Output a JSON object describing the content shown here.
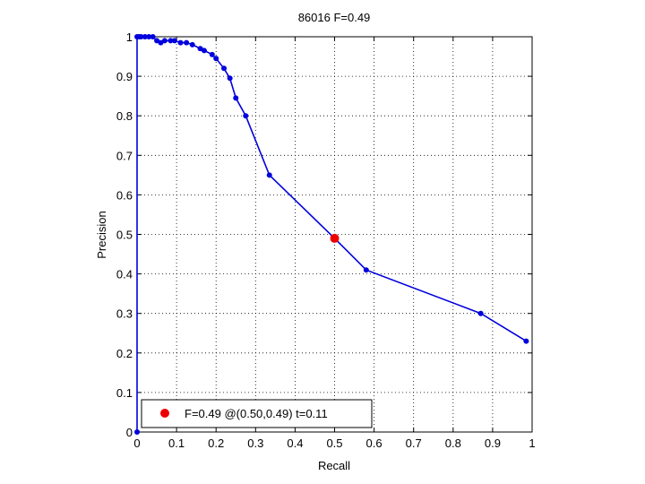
{
  "chart_data": {
    "type": "line",
    "title": "86016 F=0.49",
    "xlabel": "Recall",
    "ylabel": "Precision",
    "xlim": [
      0,
      1
    ],
    "ylim": [
      0,
      1
    ],
    "xticks": [
      "0",
      "0.1",
      "0.2",
      "0.3",
      "0.4",
      "0.5",
      "0.6",
      "0.7",
      "0.8",
      "0.9",
      "1"
    ],
    "yticks": [
      "0",
      "0.1",
      "0.2",
      "0.3",
      "0.4",
      "0.5",
      "0.6",
      "0.7",
      "0.8",
      "0.9",
      "1"
    ],
    "grid": true,
    "legend_location": "bottom-left",
    "series": [
      {
        "color": "#0000dd",
        "x": [
          0.0,
          0.0,
          0.005,
          0.01,
          0.02,
          0.03,
          0.04,
          0.05,
          0.06,
          0.07,
          0.085,
          0.095,
          0.11,
          0.125,
          0.14,
          0.16,
          0.17,
          0.19,
          0.2,
          0.22,
          0.235,
          0.25,
          0.275,
          0.335,
          0.5,
          0.58,
          0.87,
          0.985
        ],
        "y": [
          0.0,
          1.0,
          1.0,
          1.0,
          1.0,
          1.0,
          1.0,
          0.99,
          0.985,
          0.99,
          0.99,
          0.99,
          0.985,
          0.985,
          0.98,
          0.97,
          0.965,
          0.955,
          0.945,
          0.92,
          0.895,
          0.845,
          0.8,
          0.65,
          0.49,
          0.41,
          0.3,
          0.23
        ]
      }
    ],
    "highlight": {
      "x": 0.5,
      "y": 0.49,
      "color": "#ee0000",
      "label": "F=0.49 @(0.50,0.49) t=0.11"
    }
  }
}
